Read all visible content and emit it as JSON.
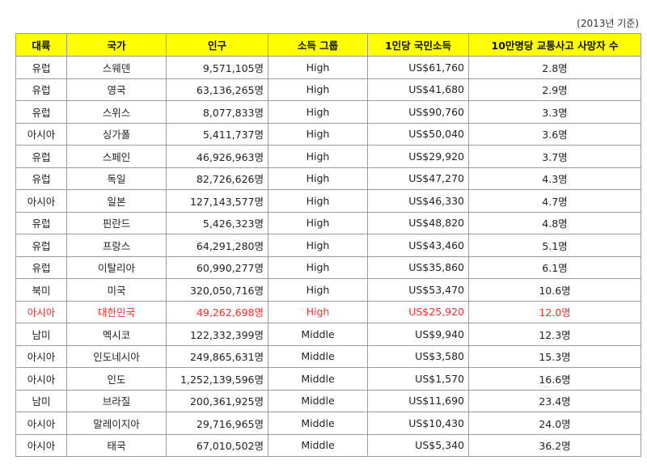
{
  "note": "(2013년 기준)",
  "headers": {
    "continent": "대륙",
    "country": "국가",
    "population": "인구",
    "income_group": "소득 그룹",
    "gni": "1인당 국민소득",
    "deaths": "10만명당 교통사고 사망자 수"
  },
  "highlight_color": "#ff2a2a",
  "header_color": "#ffff00",
  "rows": [
    {
      "continent": "유럽",
      "country": "스웨덴",
      "population": "9,571,105명",
      "income_group": "High",
      "gni": "US$61,760",
      "deaths": "2.8명",
      "highlight": false
    },
    {
      "continent": "유럽",
      "country": "영국",
      "population": "63,136,265명",
      "income_group": "High",
      "gni": "US$41,680",
      "deaths": "2.9명",
      "highlight": false
    },
    {
      "continent": "유럽",
      "country": "스위스",
      "population": "8,077,833명",
      "income_group": "High",
      "gni": "US$90,760",
      "deaths": "3.3명",
      "highlight": false
    },
    {
      "continent": "아시아",
      "country": "싱가폴",
      "population": "5,411,737명",
      "income_group": "High",
      "gni": "US$50,040",
      "deaths": "3.6명",
      "highlight": false
    },
    {
      "continent": "유럽",
      "country": "스페인",
      "population": "46,926,963명",
      "income_group": "High",
      "gni": "US$29,920",
      "deaths": "3.7명",
      "highlight": false
    },
    {
      "continent": "유럽",
      "country": "독일",
      "population": "82,726,626명",
      "income_group": "High",
      "gni": "US$47,270",
      "deaths": "4.3명",
      "highlight": false
    },
    {
      "continent": "아시아",
      "country": "일본",
      "population": "127,143,577명",
      "income_group": "High",
      "gni": "US$46,330",
      "deaths": "4.7명",
      "highlight": false
    },
    {
      "continent": "유럽",
      "country": "핀란드",
      "population": "5,426,323명",
      "income_group": "High",
      "gni": "US$48,820",
      "deaths": "4.8명",
      "highlight": false
    },
    {
      "continent": "유럽",
      "country": "프랑스",
      "population": "64,291,280명",
      "income_group": "High",
      "gni": "US$43,460",
      "deaths": "5.1명",
      "highlight": false
    },
    {
      "continent": "유럽",
      "country": "이탈리아",
      "population": "60,990,277명",
      "income_group": "High",
      "gni": "US$35,860",
      "deaths": "6.1명",
      "highlight": false
    },
    {
      "continent": "북미",
      "country": "미국",
      "population": "320,050,716명",
      "income_group": "High",
      "gni": "US$53,470",
      "deaths": "10.6명",
      "highlight": false
    },
    {
      "continent": "아시아",
      "country": "대한민국",
      "population": "49,262,698명",
      "income_group": "High",
      "gni": "US$25,920",
      "deaths": "12.0명",
      "highlight": true
    },
    {
      "continent": "남미",
      "country": "멕시코",
      "population": "122,332,399명",
      "income_group": "Middle",
      "gni": "US$9,940",
      "deaths": "12.3명",
      "highlight": false
    },
    {
      "continent": "아시아",
      "country": "인도네시아",
      "population": "249,865,631명",
      "income_group": "Middle",
      "gni": "US$3,580",
      "deaths": "15.3명",
      "highlight": false
    },
    {
      "continent": "아시아",
      "country": "인도",
      "population": "1,252,139,596명",
      "income_group": "Middle",
      "gni": "US$1,570",
      "deaths": "16.6명",
      "highlight": false
    },
    {
      "continent": "남미",
      "country": "브라질",
      "population": "200,361,925명",
      "income_group": "Middle",
      "gni": "US$11,690",
      "deaths": "23.4명",
      "highlight": false
    },
    {
      "continent": "아시아",
      "country": "말레이지아",
      "population": "29,716,965명",
      "income_group": "Middle",
      "gni": "US$10,430",
      "deaths": "24.0명",
      "highlight": false
    },
    {
      "continent": "아시아",
      "country": "태국",
      "population": "67,010,502명",
      "income_group": "Middle",
      "gni": "US$5,340",
      "deaths": "36.2명",
      "highlight": false
    }
  ]
}
